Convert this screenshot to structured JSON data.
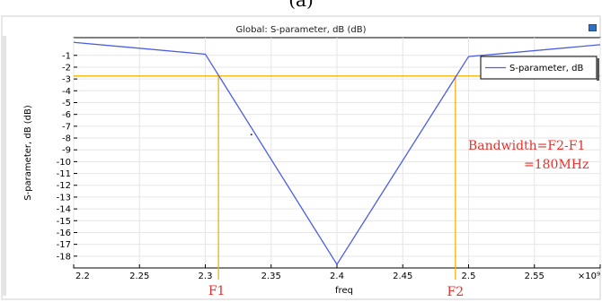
{
  "figure_label": "(a)",
  "chart_data": {
    "type": "line",
    "title": "Global: S-parameter, dB (dB)",
    "xlabel": "freq",
    "ylabel": "S-parameter, dB (dB)",
    "x_exponent_label": "×10⁹",
    "xlim": [
      2.2,
      2.6
    ],
    "ylim": [
      -19,
      0.5
    ],
    "xticks": [
      2.2,
      2.25,
      2.3,
      2.35,
      2.4,
      2.45,
      2.5,
      2.55,
      2.6
    ],
    "xtick_labels": [
      "2.2",
      "2.25",
      "2.3",
      "2.35",
      "2.4",
      "2.45",
      "2.5",
      "2.55",
      "×10⁹"
    ],
    "yticks": [
      -1,
      -2,
      -3,
      -4,
      -5,
      -6,
      -7,
      -8,
      -9,
      -10,
      -11,
      -12,
      -13,
      -14,
      -15,
      -16,
      -17,
      -18
    ],
    "grid": true,
    "legend_position": "top-right",
    "series": [
      {
        "name": "S-parameter, dB",
        "color": "#4a5ee6",
        "x": [
          2.2,
          2.3,
          2.4,
          2.5,
          2.6
        ],
        "y": [
          0.1,
          -0.9,
          -18.7,
          -1.1,
          -0.1
        ]
      }
    ],
    "reference_lines": {
      "color": "#f0b400",
      "horizontal_y": -2.75,
      "f1_x": 2.31,
      "f2_x": 2.49
    },
    "annotations": {
      "f1_label": "F1",
      "f2_label": "F2",
      "bandwidth_line1": "Bandwidth=F2-F1",
      "bandwidth_line2": "=180MHz",
      "annotation_color": "#e8302a"
    },
    "stray_dot": {
      "x": 2.335,
      "y": -7.7
    }
  }
}
